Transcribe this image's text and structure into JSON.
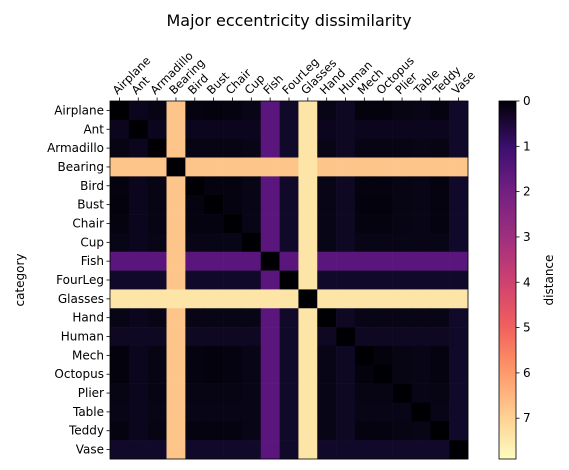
{
  "chart_data": {
    "type": "heatmap",
    "title": "Major eccentricity dissimilarity",
    "ylabel": "category",
    "colorbar_label": "distance",
    "colormap": "magma_r",
    "colorbar_range": [
      0,
      7.9
    ],
    "colorbar_ticks": [
      "0",
      "1",
      "2",
      "3",
      "4",
      "5",
      "6",
      "7"
    ],
    "categories": [
      "Airplane",
      "Ant",
      "Armadillo",
      "Bearing",
      "Bird",
      "Bust",
      "Chair",
      "Cup",
      "Fish",
      "FourLeg",
      "Glasses",
      "Hand",
      "Human",
      "Mech",
      "Octopus",
      "Plier",
      "Table",
      "Teddy",
      "Vase"
    ],
    "x_tick_labels_position": "top",
    "x_tick_rotation": 45,
    "grid": false,
    "band_values": [
      {
        "category": "Airplane",
        "value": 0.15
      },
      {
        "category": "Ant",
        "value": 0.4
      },
      {
        "category": "Armadillo",
        "value": 0.25
      },
      {
        "category": "Bearing",
        "value": 7.0
      },
      {
        "category": "Bird",
        "value": 0.2
      },
      {
        "category": "Bust",
        "value": 0.15
      },
      {
        "category": "Chair",
        "value": 0.2
      },
      {
        "category": "Cup",
        "value": 0.3
      },
      {
        "category": "Fish",
        "value": 2.2
      },
      {
        "category": "FourLeg",
        "value": 0.6
      },
      {
        "category": "Glasses",
        "value": 7.5
      },
      {
        "category": "Hand",
        "value": 0.3
      },
      {
        "category": "Human",
        "value": 0.5
      },
      {
        "category": "Mech",
        "value": 0.1
      },
      {
        "category": "Octopus",
        "value": 0.15
      },
      {
        "category": "Plier",
        "value": 0.25
      },
      {
        "category": "Table",
        "value": 0.3
      },
      {
        "category": "Teddy",
        "value": 0.2
      },
      {
        "category": "Vase",
        "value": 0.6
      }
    ]
  }
}
